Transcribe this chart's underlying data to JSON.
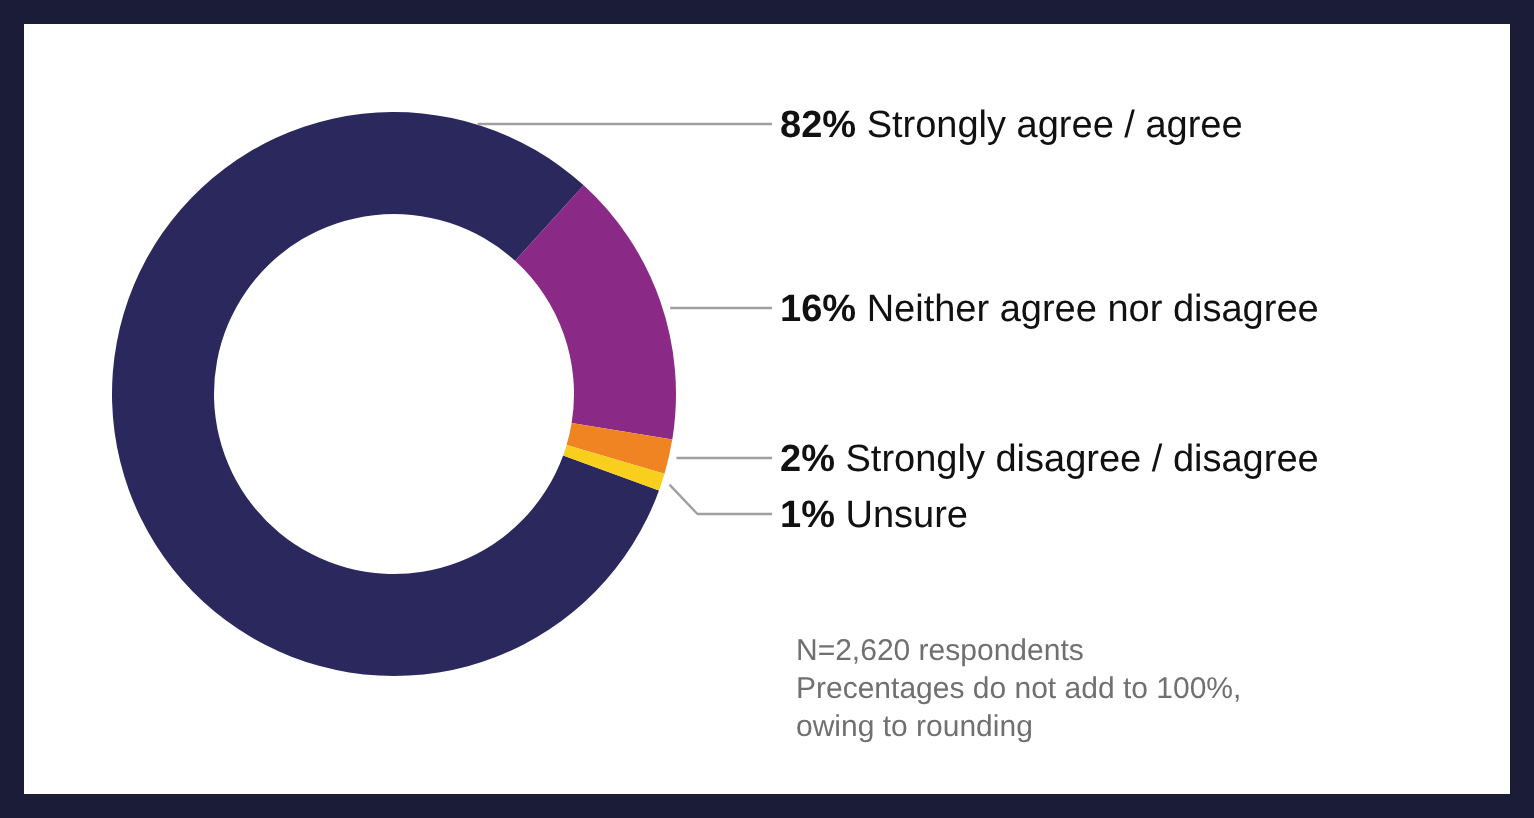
{
  "chart_data": {
    "type": "donut",
    "categories": [
      "Strongly agree / agree",
      "Neither agree nor disagree",
      "Strongly disagree / disagree",
      "Unsure"
    ],
    "values": [
      82,
      16,
      2,
      1
    ],
    "value_labels": [
      "82%",
      "16%",
      "2%",
      "1%"
    ],
    "colors": [
      "#2b285e",
      "#8a2a86",
      "#f08423",
      "#f8cf1c"
    ],
    "annotations": [
      "N=2,620 respondents",
      "Precentages do not add to 100%,",
      "owing to rounding"
    ]
  }
}
